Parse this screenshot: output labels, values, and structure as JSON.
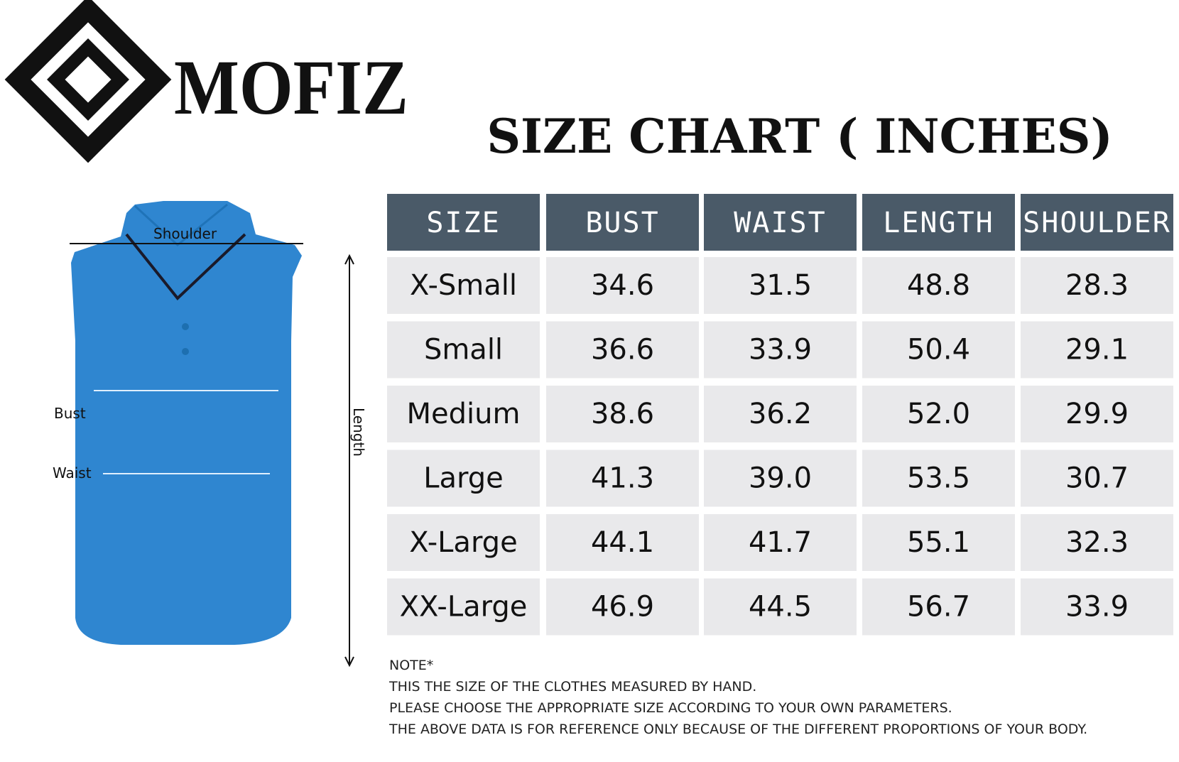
{
  "brand": "MOFIZ",
  "title": "SIZE CHART ( INCHES)",
  "diagram": {
    "shoulder": "Shoulder",
    "bust": "Bust",
    "waist": "Waist",
    "length": "Length"
  },
  "table": {
    "headers": [
      "SIZE",
      "BUST",
      "WAIST",
      "LENGTH",
      "SHOULDER"
    ],
    "rows": [
      [
        "X-Small",
        "34.6",
        "31.5",
        "48.8",
        "28.3"
      ],
      [
        "Small",
        "36.6",
        "33.9",
        "50.4",
        "29.1"
      ],
      [
        "Medium",
        "38.6",
        "36.2",
        "52.0",
        "29.9"
      ],
      [
        "Large",
        "41.3",
        "39.0",
        "53.5",
        "30.7"
      ],
      [
        "X-Large",
        "44.1",
        "41.7",
        "55.1",
        "32.3"
      ],
      [
        "XX-Large",
        "46.9",
        "44.5",
        "56.7",
        "33.9"
      ]
    ]
  },
  "notes": [
    "NOTE*",
    "THIS THE SIZE OF THE CLOTHES MEASURED BY HAND.",
    "PLEASE CHOOSE THE APPROPRIATE SIZE ACCORDING TO YOUR OWN PARAMETERS.",
    "THE ABOVE DATA IS FOR REFERENCE ONLY BECAUSE OF THE DIFFERENT PROPORTIONS OF YOUR BODY."
  ]
}
